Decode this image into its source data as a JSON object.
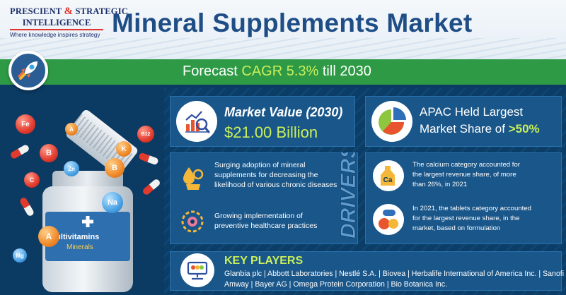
{
  "logo": {
    "line1_a": "PRESCIENT",
    "line1_amp": "&",
    "line1_b": "STRATEGIC",
    "line2": "INTELLIGENCE",
    "tagline": "Where knowledge inspires strategy"
  },
  "title": "Mineral Supplements Market",
  "forecast": {
    "prefix": "Forecast",
    "highlight": "CAGR 5.3%",
    "suffix": "till 2030"
  },
  "illustration": {
    "jar_label": "Multivitamins",
    "jar_sub": "Minerals",
    "balls": [
      "Fe",
      "A",
      "B",
      "Zn",
      "K",
      "B",
      "C",
      "B12",
      "Na",
      "A",
      "Mg"
    ]
  },
  "market_value": {
    "label": "Market Value (2030)",
    "value": "$21.00 Billion"
  },
  "apac": {
    "line1": "APAC Held Largest",
    "line2_prefix": "Market Share of",
    "line2_highlight": ">50%"
  },
  "drivers": {
    "heading": "DRIVERS",
    "items": [
      {
        "lines": [
          "Surging adoption of mineral",
          "supplements for decreasing the",
          "likelihood of various chronic diseases"
        ]
      },
      {
        "lines": [
          "Growing implementation of",
          "preventive healthcare practices"
        ]
      }
    ]
  },
  "facts": [
    {
      "icon_text": "Ca",
      "lines": [
        "The calcium category accounted for",
        "the largest revenue share, of more",
        "than 26%, in 2021"
      ]
    },
    {
      "lines": [
        "In 2021, the tablets category accounted",
        "for the largest revenue share, in the",
        "market, based on formulation"
      ]
    }
  ],
  "key_players": {
    "title": "KEY PLAYERS",
    "line1": "Glanbia plc | Abbott Laboratories | Nestlé S.A. | Biovea | Herbalife International of America Inc. | Sanofi |",
    "line2": "Amway | Bayer AG | Omega Protein Corporation | Bio Botanica Inc."
  },
  "colors": {
    "navy": "#0b3a63",
    "green_band": "#2f9a46",
    "highlight_green": "#c9ef5a",
    "title_blue": "#1f4d86",
    "logo_red": "#e0342c"
  }
}
